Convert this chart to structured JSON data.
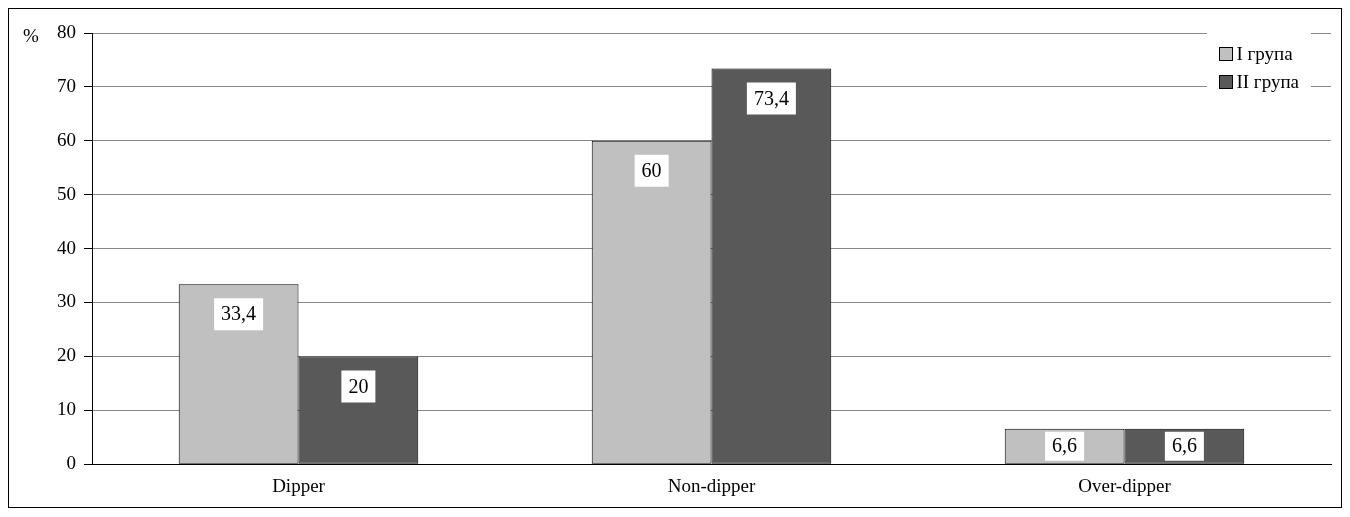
{
  "chart_data": {
    "type": "bar",
    "ylabel": "%",
    "categories": [
      "Dipper",
      "Non-dipper",
      "Over-dipper"
    ],
    "series": [
      {
        "name": "I група",
        "color": "#c0c0c0",
        "values": [
          33.4,
          60,
          6.6
        ],
        "value_labels": [
          "33,4",
          "60",
          "6,6"
        ]
      },
      {
        "name": "II група",
        "color": "#595959",
        "values": [
          20,
          73.4,
          6.6
        ],
        "value_labels": [
          "20",
          "73,4",
          "6,6"
        ]
      }
    ],
    "ylim": [
      0,
      80
    ],
    "yticks": [
      0,
      10,
      20,
      30,
      40,
      50,
      60,
      70,
      80
    ],
    "grid": "y",
    "legend": "top right"
  }
}
